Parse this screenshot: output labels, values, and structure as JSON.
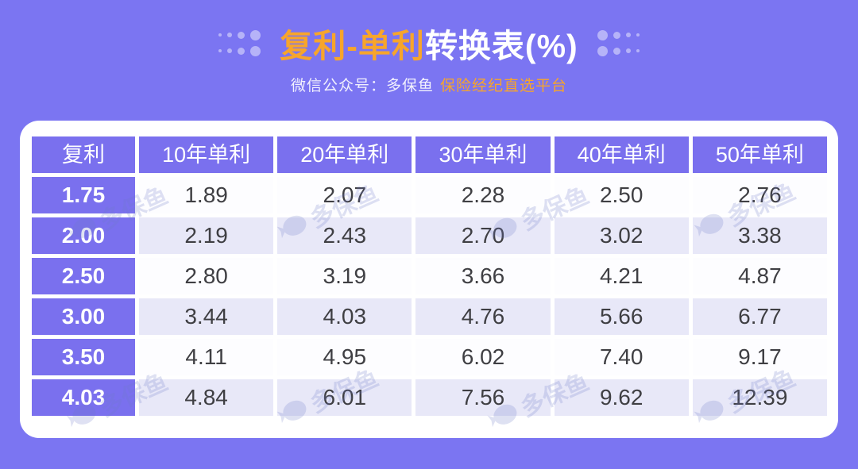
{
  "page": {
    "title": {
      "highlight": "复利-单利",
      "rest": "转换表(%)"
    },
    "subtitle": {
      "prefix": "微信公众号：多保鱼",
      "highlight": "保险经纪直选平台"
    }
  },
  "colors": {
    "background_purple": "#7b75f2",
    "cell_purple": "#7a70ee",
    "row_white": "#fdfdff",
    "row_alt_lavender": "#e8e8f8",
    "accent_orange": "#f7a52b",
    "value_text": "#3f3f43"
  },
  "watermark": {
    "text": "多保鱼",
    "icon": "fish-icon"
  },
  "chart_data": {
    "type": "table",
    "title": "复利-单利转换表(%)",
    "columns": [
      "复利",
      "10年单利",
      "20年单利",
      "30年单利",
      "40年单利",
      "50年单利"
    ],
    "rows": [
      {
        "compound_rate": "1.75",
        "values": [
          "1.89",
          "2.07",
          "2.28",
          "2.50",
          "2.76"
        ]
      },
      {
        "compound_rate": "2.00",
        "values": [
          "2.19",
          "2.43",
          "2.70",
          "3.02",
          "3.38"
        ]
      },
      {
        "compound_rate": "2.50",
        "values": [
          "2.80",
          "3.19",
          "3.66",
          "4.21",
          "4.87"
        ]
      },
      {
        "compound_rate": "3.00",
        "values": [
          "3.44",
          "4.03",
          "4.76",
          "5.66",
          "6.77"
        ]
      },
      {
        "compound_rate": "3.50",
        "values": [
          "4.11",
          "4.95",
          "6.02",
          "7.40",
          "9.17"
        ]
      },
      {
        "compound_rate": "4.03",
        "values": [
          "4.84",
          "6.01",
          "7.56",
          "9.62",
          "12.39"
        ]
      }
    ]
  }
}
